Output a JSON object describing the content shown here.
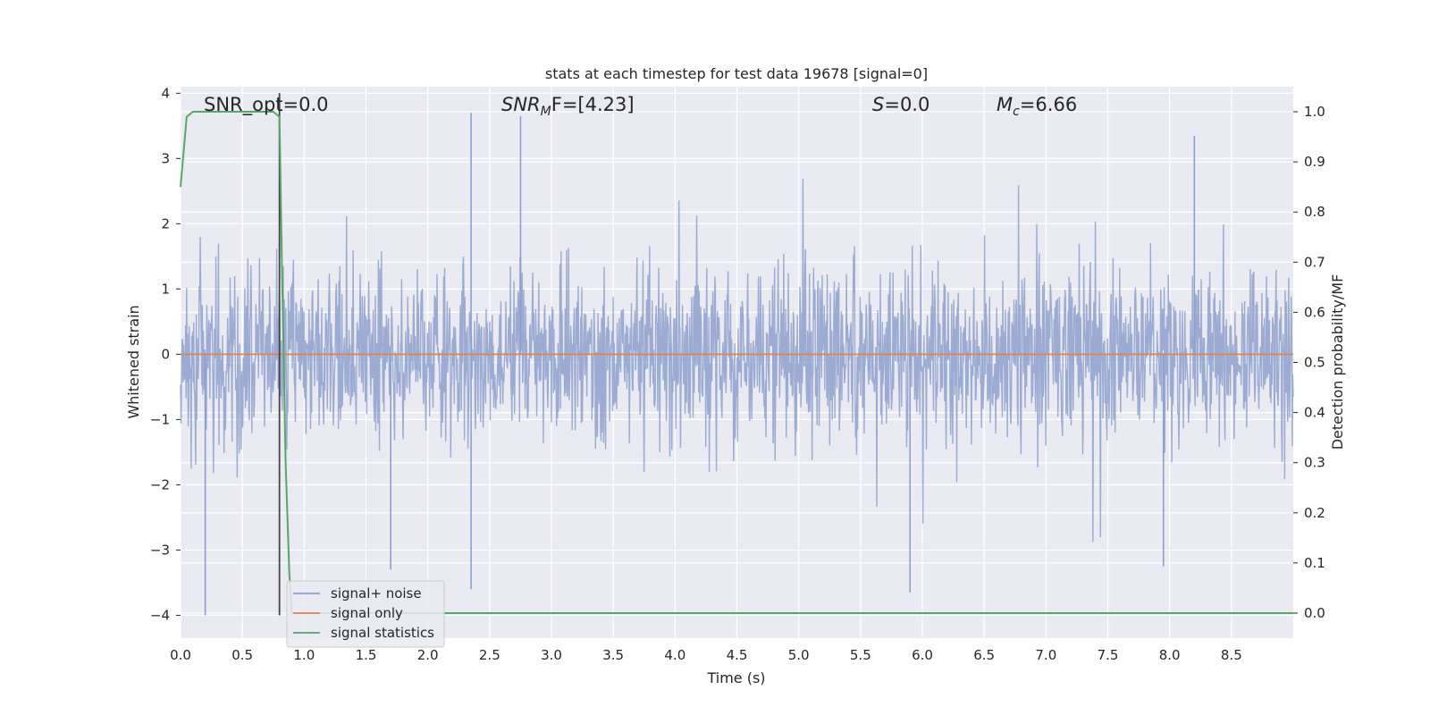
{
  "chart_data": {
    "type": "line",
    "title": "stats at each timestep for test data 19678 [signal=0]",
    "xlabel": "Time (s)",
    "ylabel_left": "Whitened strain",
    "ylabel_right": "Detection probability/MF",
    "xlim": [
      0.0,
      9.0
    ],
    "ylim_left": [
      -4.35,
      4.1
    ],
    "ylim_right": [
      -0.05,
      1.05
    ],
    "xticks": [
      "0.0",
      "0.5",
      "1.0",
      "1.5",
      "2.0",
      "2.5",
      "3.0",
      "3.5",
      "4.0",
      "4.5",
      "5.0",
      "5.5",
      "6.0",
      "6.5",
      "7.0",
      "7.5",
      "8.0",
      "8.5"
    ],
    "yticks_left": [
      "4",
      "3",
      "2",
      "1",
      "0",
      "−1",
      "−2",
      "−3",
      "−4"
    ],
    "yticks_left_values": [
      4,
      3,
      2,
      1,
      0,
      -1,
      -2,
      -3,
      -4
    ],
    "yticks_right": [
      "1.0",
      "0.9",
      "0.8",
      "0.7",
      "0.6",
      "0.5",
      "0.4",
      "0.3",
      "0.2",
      "0.1",
      "0.0"
    ],
    "yticks_right_values": [
      1.0,
      0.9,
      0.8,
      0.7,
      0.6,
      0.5,
      0.4,
      0.3,
      0.2,
      0.1,
      0.0
    ],
    "grid": true,
    "legend_position": "lower-left",
    "annotations": {
      "snr_opt": "SNR_opt=0.0",
      "snr_mf_base": "SNR",
      "snr_mf_sub": "M",
      "snr_mf_rest": "F=[4.23]",
      "s_italic": "S",
      "s_rest": "=0.0",
      "mc_base": "M",
      "mc_sub": "c",
      "mc_rest": "=6.66"
    },
    "series": [
      {
        "name": "signal+ noise",
        "axis": "left",
        "color": "#8da0cb",
        "description_stats": {
          "min": -4.0,
          "max": 3.7,
          "typical_band": [
            -1.7,
            1.7
          ]
        },
        "notable_peaks": [
          {
            "x": 2.35,
            "y": 3.7
          },
          {
            "x": 2.75,
            "y": 3.65
          },
          {
            "x": 8.2,
            "y": 3.35
          },
          {
            "x": 0.2,
            "y": -4.0
          },
          {
            "x": 5.9,
            "y": -3.65
          },
          {
            "x": 2.35,
            "y": -3.6
          },
          {
            "x": 7.95,
            "y": -3.25
          },
          {
            "x": 1.7,
            "y": -3.3
          }
        ]
      },
      {
        "name": "signal only",
        "axis": "left",
        "color": "#dd8452",
        "x": [
          0.0,
          9.0
        ],
        "y": [
          0.0,
          0.0
        ]
      },
      {
        "name": "signal statistics",
        "axis": "right",
        "color": "#55a868",
        "x": [
          0.0,
          0.05,
          0.1,
          0.15,
          0.2,
          0.3,
          0.4,
          0.5,
          0.6,
          0.7,
          0.75,
          0.8,
          0.82,
          0.85,
          0.88,
          0.9,
          1.0,
          2.0,
          5.0,
          9.0
        ],
        "y": [
          0.85,
          0.99,
          1.0,
          1.0,
          1.0,
          1.0,
          1.0,
          1.0,
          1.0,
          1.0,
          1.0,
          0.99,
          0.7,
          0.3,
          0.08,
          0.0,
          0.0,
          0.0,
          0.0,
          0.0
        ]
      }
    ],
    "vertical_marker": {
      "x": 0.8,
      "y_range_left": [
        -4.0,
        4.0
      ],
      "color": "#444444"
    }
  },
  "colors": {
    "plot_bg": "#eaeaf2",
    "grid": "#ffffff",
    "noise": "#8da0cb",
    "signal": "#dd8452",
    "stats": "#55a868"
  }
}
